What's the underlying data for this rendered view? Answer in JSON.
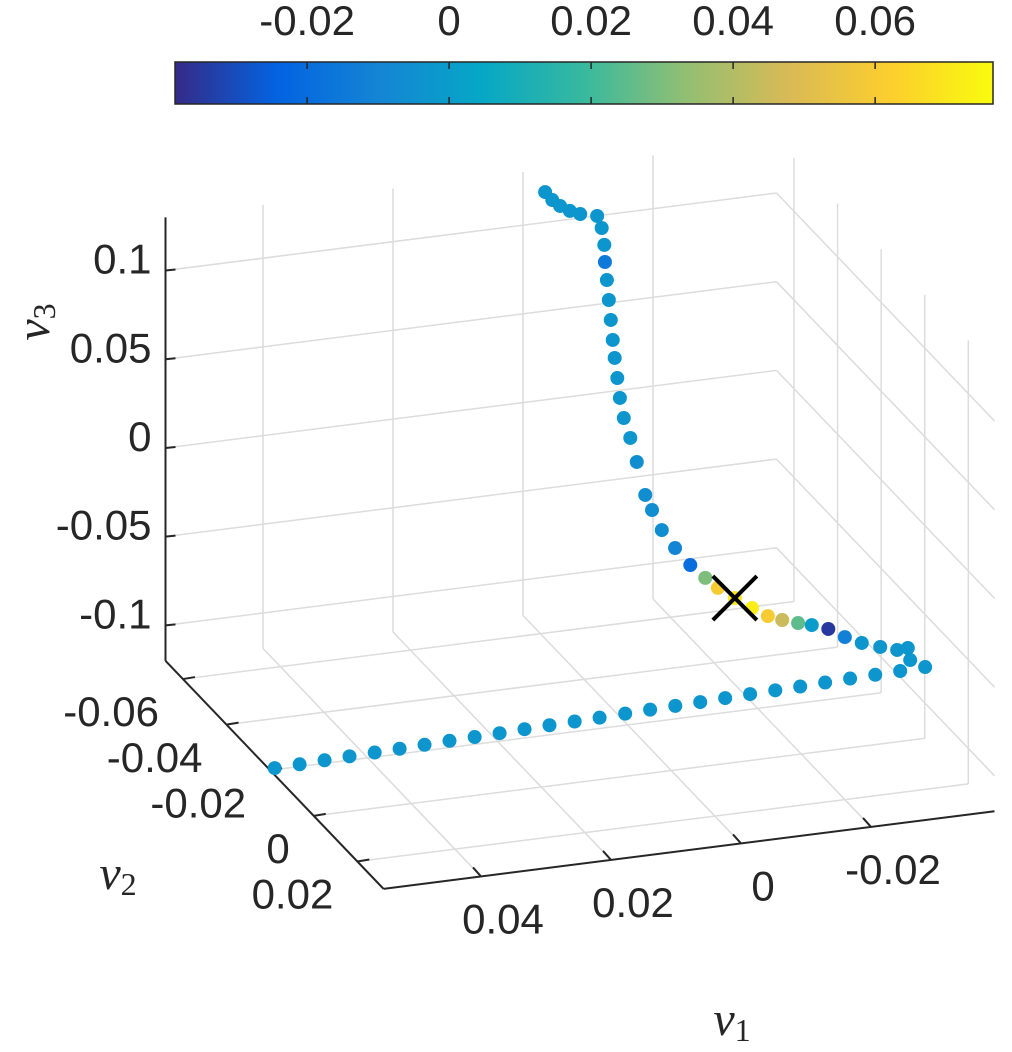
{
  "chart_data": {
    "type": "scatter3d",
    "xlabel": {
      "symbol": "v",
      "subscript": "1"
    },
    "ylabel": {
      "symbol": "v",
      "subscript": "2"
    },
    "zlabel": {
      "symbol": "v",
      "subscript": "3"
    },
    "xlim": [
      -0.039,
      0.055
    ],
    "ylim": [
      -0.068,
      0.032
    ],
    "zlim": [
      -0.12,
      0.13
    ],
    "xticks": [
      -0.02,
      0,
      0.02,
      0.04
    ],
    "yticks": [
      -0.06,
      -0.04,
      -0.02,
      0,
      0.02
    ],
    "zticks": [
      -0.1,
      -0.05,
      0,
      0.05,
      0.1
    ],
    "grid": true,
    "points": {
      "v1": [
        -0.0024,
        -0.0035,
        -0.0047,
        -0.0062,
        -0.0078,
        -0.0104,
        -0.0111,
        -0.0115,
        -0.0116,
        -0.0119,
        -0.0122,
        -0.0125,
        -0.0128,
        -0.0131,
        -0.0135,
        -0.0139,
        -0.0145,
        -0.0155,
        -0.0165,
        -0.0178,
        -0.0175,
        -0.018,
        -0.0187,
        -0.0197,
        -0.021,
        -0.0216,
        -0.0232,
        -0.0245,
        -0.0256,
        -0.0268,
        -0.0279,
        -0.029,
        -0.0302,
        -0.0314,
        -0.033,
        -0.0345,
        -0.0361,
        -0.0364,
        -0.0267,
        -0.029,
        -0.0258,
        -0.0226,
        -0.0194,
        -0.0162,
        -0.013,
        -0.0098,
        -0.0066,
        -0.0034,
        -0.0002,
        0.003,
        0.0062,
        0.0094,
        0.0127,
        0.0159,
        0.0191,
        0.0223,
        0.0255,
        0.0287,
        0.0319,
        0.0351,
        0.0383,
        0.0415,
        0.0447,
        0.0479,
        0.0511,
        0.0543
      ],
      "v2": [
        -0.065,
        -0.065,
        -0.065,
        -0.065,
        -0.065,
        -0.065,
        -0.065,
        -0.065,
        -0.065,
        -0.065,
        -0.065,
        -0.065,
        -0.065,
        -0.065,
        -0.065,
        -0.065,
        -0.065,
        -0.065,
        -0.065,
        -0.065,
        -0.061,
        -0.058,
        -0.054,
        -0.05,
        -0.047,
        -0.043,
        -0.04,
        -0.036,
        -0.032,
        -0.029,
        -0.025,
        -0.022,
        -0.018,
        -0.014,
        -0.011,
        -0.007,
        -0.004,
        0,
        0.03,
        0.03,
        0.0281,
        0.0262,
        0.0242,
        0.0223,
        0.0204,
        0.0185,
        0.0165,
        0.0146,
        0.0127,
        0.0108,
        0.0088,
        0.0069,
        0.005,
        0.0031,
        0.0011,
        -0.0008,
        -0.0027,
        -0.0046,
        -0.0066,
        -0.0085,
        -0.0104,
        -0.0123,
        -0.0143,
        -0.0162,
        -0.0181,
        -0.02
      ],
      "v3": [
        0.1214,
        0.1164,
        0.1125,
        0.109,
        0.1065,
        0.1042,
        0.0971,
        0.0874,
        0.0777,
        0.0674,
        0.056,
        0.0446,
        0.0332,
        0.0229,
        0.0114,
        0,
        -0.0116,
        -0.0233,
        -0.0373,
        -0.0565,
        -0.0597,
        -0.0674,
        -0.0727,
        -0.0776,
        -0.0816,
        -0.0824,
        -0.085,
        -0.0861,
        -0.086,
        -0.0849,
        -0.082,
        -0.0798,
        -0.0774,
        -0.0774,
        -0.0776,
        -0.0754,
        -0.074,
        -0.0679,
        -0.0316,
        -0.0366,
        -0.0398,
        -0.0429,
        -0.0461,
        -0.0493,
        -0.0525,
        -0.0556,
        -0.0588,
        -0.062,
        -0.0652,
        -0.0683,
        -0.0715,
        -0.0747,
        -0.0779,
        -0.081,
        -0.0842,
        -0.0874,
        -0.0906,
        -0.0937,
        -0.0969,
        -0.1001,
        -0.1033,
        -0.1064,
        -0.1096,
        -0.1128,
        -0.116,
        -0.1191
      ],
      "c": [
        -0.003,
        -0.003,
        -0.003,
        -0.003,
        -0.003,
        -0.003,
        -0.003,
        -0.003,
        -0.015,
        -0.003,
        -0.003,
        -0.003,
        -0.003,
        -0.003,
        -0.003,
        -0.003,
        -0.003,
        -0.003,
        -0.006,
        -0.006,
        -0.006,
        -0.006,
        -0.01,
        -0.02,
        0.03,
        0.06,
        0.07,
        0.072,
        0.06,
        0.045,
        0.025,
        0.0,
        -0.035,
        -0.012,
        -0.003,
        -0.003,
        -0.003,
        -0.003,
        -0.003,
        -0.003,
        -0.003,
        -0.003,
        -0.003,
        -0.003,
        -0.003,
        -0.003,
        -0.003,
        -0.003,
        -0.003,
        -0.003,
        -0.003,
        -0.003,
        -0.003,
        -0.003,
        -0.003,
        -0.003,
        -0.003,
        -0.003,
        -0.003,
        -0.003,
        -0.003,
        -0.003,
        -0.003,
        -0.003,
        -0.003,
        -0.003
      ]
    },
    "highlight": {
      "v1": -0.0232,
      "v2": -0.04,
      "v3": -0.085,
      "color": "#000000"
    },
    "colorbar": {
      "location": "top",
      "clim": [
        -0.0386,
        0.0766
      ],
      "ticks": [
        -0.02,
        0,
        0.02,
        0.04,
        0.06
      ],
      "colormap": [
        "#352a87",
        "#0363e1",
        "#1485d4",
        "#06a7c6",
        "#38b99e",
        "#92bf73",
        "#d9ba56",
        "#fcce2e",
        "#f9fb0e"
      ]
    }
  }
}
